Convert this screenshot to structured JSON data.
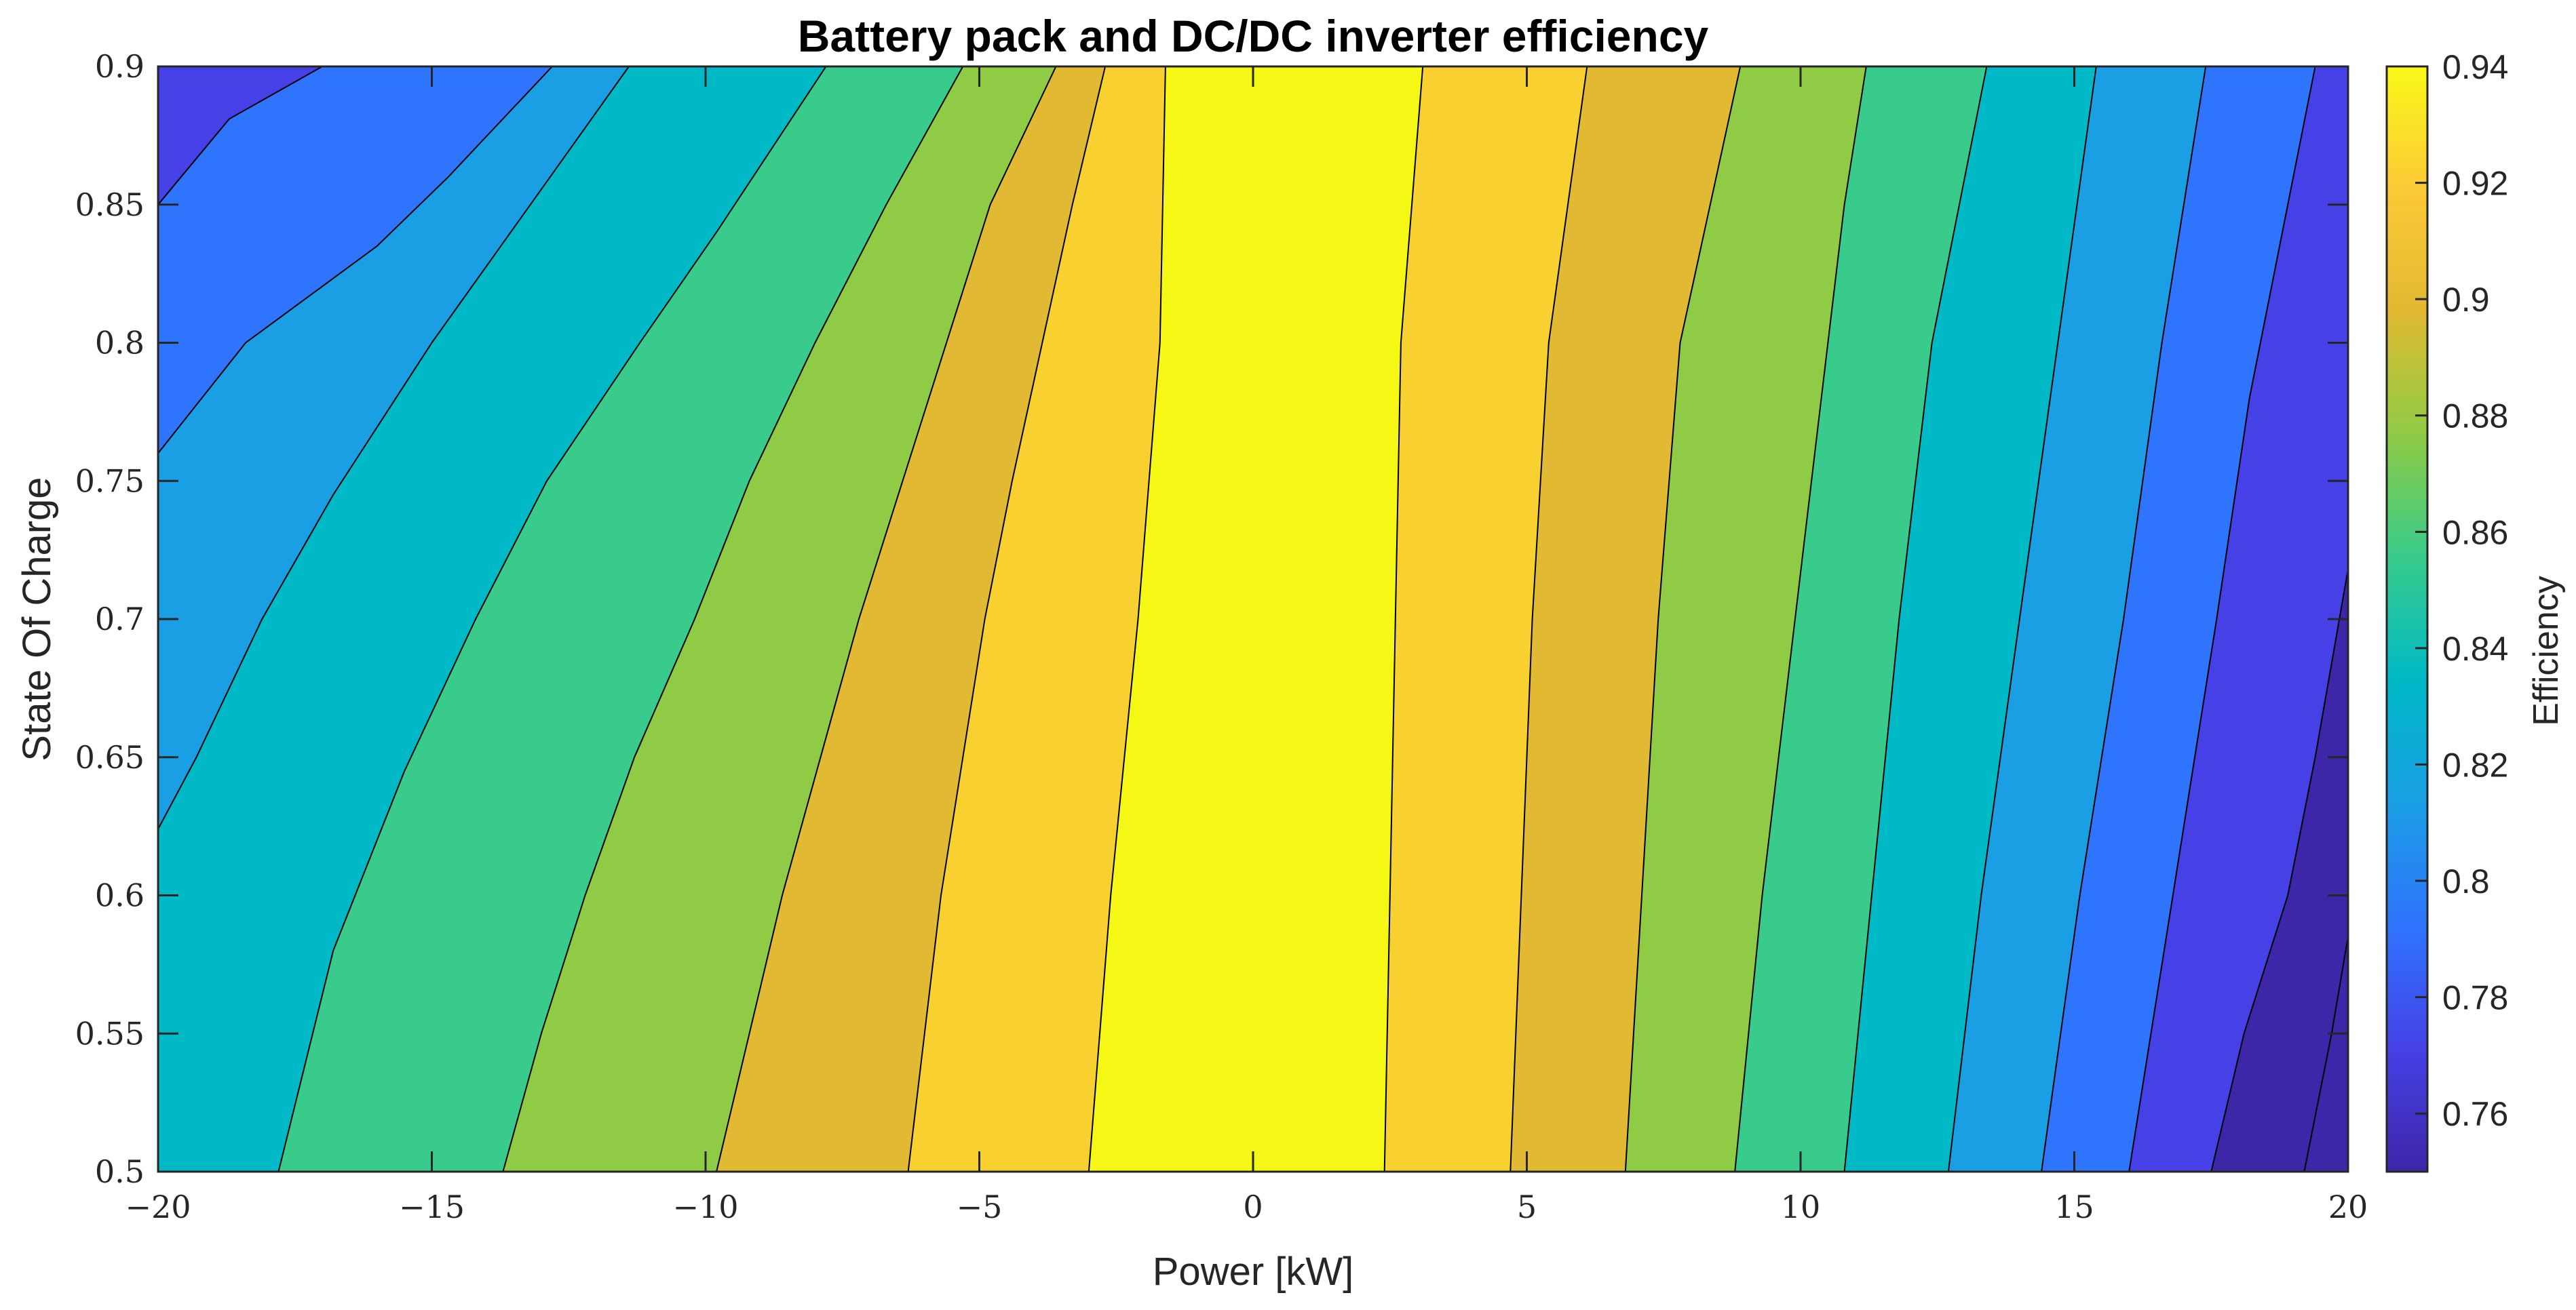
{
  "chart_data": {
    "type": "contour",
    "title": "Battery pack and DC/DC inverter efficiency",
    "xlabel": "Power [kW]",
    "ylabel": "State Of Charge",
    "colorbar_label": "Efficiency",
    "xlim": [
      -20,
      20
    ],
    "ylim": [
      0.5,
      0.9
    ],
    "clim": [
      0.75,
      0.94
    ],
    "x_ticks": [
      -20,
      -15,
      -10,
      -5,
      0,
      5,
      10,
      15,
      20
    ],
    "x_tick_labels": [
      "−20",
      "−15",
      "−10",
      "−5",
      "0",
      "5",
      "10",
      "15",
      "20"
    ],
    "y_ticks": [
      0.5,
      0.55,
      0.6,
      0.65,
      0.7,
      0.75,
      0.8,
      0.85,
      0.9
    ],
    "y_tick_labels": [
      "0.5",
      "0.55",
      "0.6",
      "0.65",
      "0.7",
      "0.75",
      "0.8",
      "0.85",
      "0.9"
    ],
    "colorbar_ticks": [
      0.76,
      0.78,
      0.8,
      0.82,
      0.84,
      0.86,
      0.88,
      0.9,
      0.92,
      0.94
    ],
    "colorbar_tick_labels": [
      "0.76",
      "0.78",
      "0.8",
      "0.82",
      "0.84",
      "0.86",
      "0.88",
      "0.9",
      "0.92",
      "0.94"
    ],
    "colormap": "parula",
    "colormap_stops": [
      "#3e26a8",
      "#4541e6",
      "#2f74fd",
      "#1a9ee4",
      "#00b9c6",
      "#38cb8b",
      "#8fcb44",
      "#e1b932",
      "#fcc937",
      "#f9f919"
    ],
    "contour_levels": [
      0.756,
      0.776,
      0.796,
      0.816,
      0.836,
      0.856,
      0.876,
      0.896,
      0.916,
      0.936,
      0.956
    ],
    "band_colors": [
      "#3e26a8",
      "#4541e6",
      "#2f74fd",
      "#1a9ee4",
      "#00b9c6",
      "#38cb8b",
      "#8fcb44",
      "#e1b932",
      "#f8d030",
      "#f5f714"
    ],
    "contour_lines": [
      {
        "level": 0.776,
        "points": [
          [
            -20,
            0.85
          ],
          [
            -18.7,
            0.881
          ],
          [
            -17,
            0.9
          ]
        ]
      },
      {
        "level": 0.796,
        "points": [
          [
            -20,
            0.76
          ],
          [
            -18.4,
            0.8
          ],
          [
            -16,
            0.835
          ],
          [
            -14.7,
            0.86
          ],
          [
            -12.8,
            0.9
          ]
        ]
      },
      {
        "level": 0.816,
        "points": [
          [
            -20,
            0.624
          ],
          [
            -19.3,
            0.65
          ],
          [
            -18.1,
            0.7
          ],
          [
            -16.8,
            0.745
          ],
          [
            -15,
            0.8
          ],
          [
            -13.2,
            0.85
          ],
          [
            -11.4,
            0.9
          ]
        ]
      },
      {
        "level": 0.836,
        "points": [
          [
            -17.8,
            0.5
          ],
          [
            -16.8,
            0.58
          ],
          [
            -15.5,
            0.645
          ],
          [
            -14.2,
            0.7
          ],
          [
            -12.9,
            0.75
          ],
          [
            -11.2,
            0.8
          ],
          [
            -9.8,
            0.84
          ],
          [
            -7.8,
            0.9
          ]
        ]
      },
      {
        "level": 0.856,
        "points": [
          [
            -13.7,
            0.5
          ],
          [
            -13,
            0.55
          ],
          [
            -12.2,
            0.6
          ],
          [
            -11.3,
            0.65
          ],
          [
            -10.2,
            0.7
          ],
          [
            -9.2,
            0.75
          ],
          [
            -8,
            0.8
          ],
          [
            -6.7,
            0.85
          ],
          [
            -5.3,
            0.9
          ]
        ]
      },
      {
        "level": 0.876,
        "points": [
          [
            -9.8,
            0.5
          ],
          [
            -9.2,
            0.55
          ],
          [
            -8.6,
            0.6
          ],
          [
            -7.9,
            0.65
          ],
          [
            -7.2,
            0.7
          ],
          [
            -6.4,
            0.75
          ],
          [
            -5.6,
            0.8
          ],
          [
            -4.8,
            0.85
          ],
          [
            -3.6,
            0.9
          ]
        ]
      },
      {
        "level": 0.896,
        "points": [
          [
            -6.3,
            0.5
          ],
          [
            -5.7,
            0.6
          ],
          [
            -4.9,
            0.7
          ],
          [
            -4.4,
            0.75
          ],
          [
            -3.3,
            0.85
          ],
          [
            -2.7,
            0.9
          ]
        ]
      },
      {
        "level": 0.916,
        "points": [
          [
            -3,
            0.5
          ],
          [
            -2.6,
            0.6
          ],
          [
            -2.1,
            0.7
          ],
          [
            -1.7,
            0.8
          ],
          [
            -1.6,
            0.9
          ]
        ]
      },
      {
        "level": 0.916,
        "points": [
          [
            2.4,
            0.5
          ],
          [
            2.5,
            0.6
          ],
          [
            2.6,
            0.7
          ],
          [
            2.7,
            0.8
          ],
          [
            3.1,
            0.9
          ]
        ]
      },
      {
        "level": 0.896,
        "points": [
          [
            4.7,
            0.5
          ],
          [
            4.9,
            0.6
          ],
          [
            5.1,
            0.7
          ],
          [
            5.4,
            0.8
          ],
          [
            6.1,
            0.9
          ]
        ]
      },
      {
        "level": 0.876,
        "points": [
          [
            6.8,
            0.5
          ],
          [
            7.1,
            0.6
          ],
          [
            7.4,
            0.7
          ],
          [
            7.8,
            0.8
          ],
          [
            8.9,
            0.9
          ]
        ]
      },
      {
        "level": 0.856,
        "points": [
          [
            8.8,
            0.5
          ],
          [
            9.3,
            0.6
          ],
          [
            9.6,
            0.65
          ],
          [
            10.2,
            0.75
          ],
          [
            10.8,
            0.85
          ],
          [
            11.2,
            0.9
          ]
        ]
      },
      {
        "level": 0.836,
        "points": [
          [
            10.8,
            0.5
          ],
          [
            11.3,
            0.6
          ],
          [
            11.8,
            0.7
          ],
          [
            12.4,
            0.8
          ],
          [
            13.4,
            0.9
          ]
        ]
      },
      {
        "level": 0.816,
        "points": [
          [
            12.7,
            0.5
          ],
          [
            13.3,
            0.6
          ],
          [
            14,
            0.7
          ],
          [
            14.7,
            0.8
          ],
          [
            15.4,
            0.9
          ]
        ]
      },
      {
        "level": 0.796,
        "points": [
          [
            14.4,
            0.5
          ],
          [
            15.1,
            0.6
          ],
          [
            15.9,
            0.7
          ],
          [
            16.6,
            0.8
          ],
          [
            17.4,
            0.9
          ]
        ]
      },
      {
        "level": 0.776,
        "points": [
          [
            16,
            0.5
          ],
          [
            16.8,
            0.6
          ],
          [
            17.6,
            0.7
          ],
          [
            18.2,
            0.78
          ],
          [
            18.9,
            0.85
          ],
          [
            19.4,
            0.9
          ]
        ]
      },
      {
        "level": 0.756,
        "points": [
          [
            17.5,
            0.5
          ],
          [
            18.1,
            0.55
          ],
          [
            18.9,
            0.6
          ],
          [
            19.4,
            0.65
          ],
          [
            20,
            0.718
          ]
        ]
      },
      {
        "level": 0.736,
        "points": [
          [
            19.2,
            0.5
          ],
          [
            19.7,
            0.55
          ],
          [
            20,
            0.585
          ]
        ]
      },
      {
        "level": 0.716,
        "points": [
          [
            20,
            0.5
          ],
          [
            20,
            0.5
          ]
        ]
      }
    ]
  }
}
